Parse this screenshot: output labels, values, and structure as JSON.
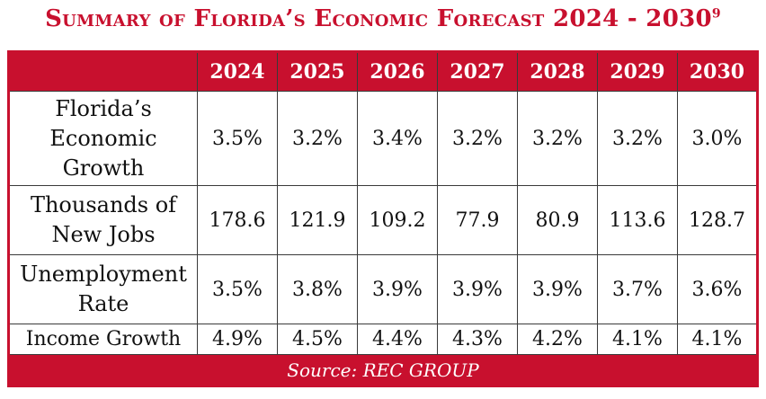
{
  "title": "Summary of Florida’s Economic Forecast 2024 - 2030",
  "title_footnote": "9",
  "colors": {
    "accent": "#c8102e",
    "text": "#111111",
    "header_text": "#ffffff"
  },
  "chart_data": {
    "type": "table",
    "title": "Summary of Florida’s Economic Forecast 2024 - 2030",
    "columns": [
      "2024",
      "2025",
      "2026",
      "2027",
      "2028",
      "2029",
      "2030"
    ],
    "rows": [
      {
        "label": "Florida’s Economic Growth",
        "values": [
          "3.5%",
          "3.2%",
          "3.4%",
          "3.2%",
          "3.2%",
          "3.2%",
          "3.0%"
        ]
      },
      {
        "label": "Thousands of New Jobs",
        "values": [
          "178.6",
          "121.9",
          "109.2",
          "77.9",
          "80.9",
          "113.6",
          "128.7"
        ]
      },
      {
        "label": "Unemployment Rate",
        "values": [
          "3.5%",
          "3.8%",
          "3.9%",
          "3.9%",
          "3.9%",
          "3.7%",
          "3.6%"
        ]
      },
      {
        "label": "Income Growth",
        "values": [
          "4.9%",
          "4.5%",
          "4.4%",
          "4.3%",
          "4.2%",
          "4.1%",
          "4.1%"
        ]
      }
    ],
    "source": "Source: REC GROUP"
  }
}
